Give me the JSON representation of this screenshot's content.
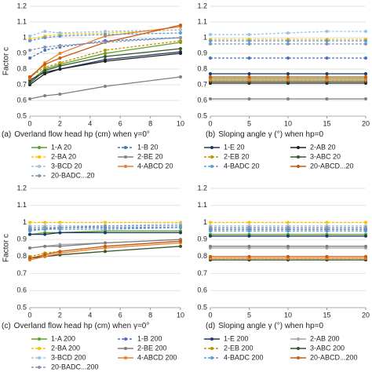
{
  "chart_data": [
    {
      "type": "line",
      "panel": "(a)",
      "x_label": "Overland flow head hp (cm) when γ=0°",
      "y_label": "Factor c",
      "x": [
        0,
        1,
        2,
        5,
        10
      ],
      "xlim": [
        0,
        10
      ],
      "xticks": [
        0,
        2,
        4,
        6,
        8,
        10
      ],
      "ylim": [
        0.5,
        1.2
      ],
      "yticks": [
        0.5,
        0.6,
        0.7,
        0.8,
        0.9,
        1,
        1.1,
        1.2
      ],
      "grid": true,
      "series": [
        {
          "name": "1-A 20",
          "color": "#5aa02c",
          "values": [
            0.72,
            0.8,
            0.83,
            0.9,
            0.97
          ]
        },
        {
          "name": "1-B 20",
          "color": "#4472c4",
          "dashed": true,
          "values": [
            0.87,
            0.92,
            0.94,
            0.98,
            1.0
          ]
        },
        {
          "name": "1-E 20",
          "color": "#1f3864",
          "values": [
            0.73,
            0.78,
            0.8,
            0.86,
            0.91
          ]
        },
        {
          "name": "2-AB 20",
          "color": "#222222",
          "values": [
            0.7,
            0.77,
            0.8,
            0.85,
            0.9
          ]
        },
        {
          "name": "2-BA 20",
          "color": "#ffc000",
          "dashed": true,
          "values": [
            0.99,
            1.01,
            1.02,
            1.03,
            1.05
          ]
        },
        {
          "name": "2-BE 20",
          "color": "#7f7f7f",
          "values": [
            0.61,
            0.63,
            0.64,
            0.69,
            0.75
          ]
        },
        {
          "name": "2-EB 20",
          "color": "#bf9000",
          "dashed": true,
          "values": [
            0.75,
            0.81,
            0.84,
            0.92,
            0.98
          ]
        },
        {
          "name": "3-ABC 20",
          "color": "#375623",
          "values": [
            0.71,
            0.79,
            0.82,
            0.88,
            0.93
          ]
        },
        {
          "name": "3-BCD 20",
          "color": "#9dc3e6",
          "dashed": true,
          "values": [
            1.01,
            1.04,
            1.03,
            1.04,
            1.05
          ]
        },
        {
          "name": "4-ABCD 20",
          "color": "#ed7d31",
          "values": [
            0.74,
            0.84,
            0.9,
            1.01,
            1.07
          ]
        },
        {
          "name": "4-BADC 20",
          "color": "#5b9bd5",
          "dashed": true,
          "values": [
            0.98,
            1.0,
            1.01,
            1.02,
            1.03
          ]
        },
        {
          "name": "20-ABCD...20",
          "color": "#c55a11",
          "values": [
            0.75,
            0.83,
            0.87,
            0.97,
            1.08
          ]
        },
        {
          "name": "20-BADC...20",
          "color": "#8497b0",
          "dashed": true,
          "values": [
            0.92,
            0.94,
            0.95,
            0.97,
            1.0
          ]
        }
      ]
    },
    {
      "type": "line",
      "panel": "(b)",
      "x_label": "Sloping angle γ (°) when hp=0",
      "x": [
        0,
        5,
        10,
        15,
        20
      ],
      "xlim": [
        0,
        20
      ],
      "xticks": [
        0,
        5,
        10,
        15,
        20
      ],
      "ylim": [
        0.5,
        1.2
      ],
      "yticks": [
        0.5,
        0.6,
        0.7,
        0.8,
        0.9,
        1,
        1.1,
        1.2
      ],
      "grid": true,
      "series": [
        {
          "color": "#5aa02c",
          "values": [
            0.74,
            0.74,
            0.74,
            0.74,
            0.74
          ]
        },
        {
          "color": "#4472c4",
          "dashed": true,
          "values": [
            0.87,
            0.87,
            0.87,
            0.87,
            0.87
          ]
        },
        {
          "color": "#1f3864",
          "values": [
            0.77,
            0.77,
            0.77,
            0.77,
            0.77
          ]
        },
        {
          "color": "#222222",
          "values": [
            0.71,
            0.71,
            0.71,
            0.71,
            0.71
          ]
        },
        {
          "color": "#ffc000",
          "dashed": true,
          "values": [
            0.99,
            0.99,
            0.99,
            0.99,
            0.99
          ]
        },
        {
          "color": "#7f7f7f",
          "values": [
            0.61,
            0.61,
            0.61,
            0.61,
            0.61
          ]
        },
        {
          "color": "#bf9000",
          "dashed": true,
          "values": [
            0.73,
            0.73,
            0.73,
            0.73,
            0.73
          ]
        },
        {
          "color": "#375623",
          "values": [
            0.72,
            0.72,
            0.72,
            0.72,
            0.72
          ]
        },
        {
          "color": "#9dc3e6",
          "dashed": true,
          "values": [
            1.02,
            1.02,
            1.03,
            1.04,
            1.04
          ]
        },
        {
          "color": "#ed7d31",
          "values": [
            0.73,
            0.73,
            0.73,
            0.73,
            0.73
          ]
        },
        {
          "color": "#5b9bd5",
          "dashed": true,
          "values": [
            0.98,
            0.98,
            0.98,
            0.98,
            0.98
          ]
        },
        {
          "color": "#c55a11",
          "values": [
            0.75,
            0.75,
            0.75,
            0.75,
            0.75
          ]
        },
        {
          "color": "#8497b0",
          "dashed": true,
          "values": [
            0.96,
            0.96,
            0.96,
            0.96,
            0.96
          ]
        }
      ]
    },
    {
      "type": "line",
      "panel": "(c)",
      "x_label": "Overland flow head hp (cm) when γ=0°",
      "y_label": "Factor c",
      "x": [
        0,
        1,
        2,
        5,
        10
      ],
      "xlim": [
        0,
        10
      ],
      "xticks": [
        0,
        2,
        4,
        6,
        8,
        10
      ],
      "ylim": [
        0.5,
        1.2
      ],
      "yticks": [
        0.5,
        0.6,
        0.7,
        0.8,
        0.9,
        1,
        1.1,
        1.2
      ],
      "grid": true,
      "series": [
        {
          "name": "1-A 200",
          "color": "#5aa02c",
          "values": [
            0.93,
            0.94,
            0.94,
            0.95,
            0.95
          ]
        },
        {
          "name": "1-B 200",
          "color": "#4472c4",
          "dashed": true,
          "values": [
            0.96,
            0.96,
            0.97,
            0.97,
            0.97
          ]
        },
        {
          "name": "1-E 200",
          "color": "#1f3864",
          "values": [
            0.93,
            0.93,
            0.94,
            0.94,
            0.94
          ]
        },
        {
          "name": "2-AB 200",
          "color": "#a5a5a5",
          "values": [
            0.85,
            0.86,
            0.87,
            0.88,
            0.9
          ]
        },
        {
          "name": "2-BA 200",
          "color": "#ffc000",
          "dashed": true,
          "values": [
            1.0,
            1.0,
            1.0,
            1.0,
            1.0
          ]
        },
        {
          "name": "2-BE 200",
          "color": "#7f7f7f",
          "values": [
            0.85,
            0.86,
            0.86,
            0.88,
            0.9
          ]
        },
        {
          "name": "2-EB 200",
          "color": "#bf9000",
          "dashed": true,
          "values": [
            0.8,
            0.82,
            0.83,
            0.86,
            0.89
          ]
        },
        {
          "name": "3-ABC 200",
          "color": "#375623",
          "values": [
            0.79,
            0.8,
            0.81,
            0.83,
            0.86
          ]
        },
        {
          "name": "3-BCD 200",
          "color": "#9dc3e6",
          "dashed": true,
          "values": [
            0.98,
            0.98,
            0.98,
            0.98,
            0.99
          ]
        },
        {
          "name": "4-ABCD 200",
          "color": "#ed7d31",
          "values": [
            0.78,
            0.8,
            0.82,
            0.85,
            0.88
          ]
        },
        {
          "name": "4-BADC 200",
          "color": "#5b9bd5",
          "dashed": true,
          "values": [
            0.95,
            0.96,
            0.96,
            0.96,
            0.97
          ]
        },
        {
          "name": "20-ABCD...200",
          "color": "#c55a11",
          "values": [
            0.79,
            0.81,
            0.83,
            0.86,
            0.89
          ]
        },
        {
          "name": "20-BADC...200",
          "color": "#8497b0",
          "dashed": true,
          "values": [
            0.97,
            0.97,
            0.97,
            0.98,
            0.98
          ]
        }
      ]
    },
    {
      "type": "line",
      "panel": "(d)",
      "x_label": "Sloping angle γ (°) when hp=0",
      "x": [
        0,
        5,
        10,
        15,
        20
      ],
      "xlim": [
        0,
        20
      ],
      "xticks": [
        0,
        5,
        10,
        15,
        20
      ],
      "ylim": [
        0.5,
        1.2
      ],
      "yticks": [
        0.5,
        0.6,
        0.7,
        0.8,
        0.9,
        1,
        1.1,
        1.2
      ],
      "grid": true,
      "series": [
        {
          "color": "#5aa02c",
          "values": [
            0.93,
            0.93,
            0.93,
            0.93,
            0.93
          ]
        },
        {
          "color": "#4472c4",
          "dashed": true,
          "values": [
            0.96,
            0.96,
            0.96,
            0.96,
            0.96
          ]
        },
        {
          "color": "#1f3864",
          "values": [
            0.92,
            0.92,
            0.92,
            0.92,
            0.92
          ]
        },
        {
          "color": "#a5a5a5",
          "values": [
            0.85,
            0.85,
            0.85,
            0.85,
            0.85
          ]
        },
        {
          "color": "#ffc000",
          "dashed": true,
          "values": [
            1.0,
            1.0,
            1.0,
            1.0,
            1.0
          ]
        },
        {
          "color": "#7f7f7f",
          "values": [
            0.86,
            0.86,
            0.86,
            0.86,
            0.86
          ]
        },
        {
          "color": "#bf9000",
          "dashed": true,
          "values": [
            0.79,
            0.79,
            0.79,
            0.79,
            0.79
          ]
        },
        {
          "color": "#375623",
          "values": [
            0.78,
            0.78,
            0.78,
            0.78,
            0.78
          ]
        },
        {
          "color": "#9dc3e6",
          "dashed": true,
          "values": [
            0.98,
            0.98,
            0.98,
            0.98,
            0.98
          ]
        },
        {
          "color": "#ed7d31",
          "values": [
            0.79,
            0.79,
            0.79,
            0.79,
            0.79
          ]
        },
        {
          "color": "#5b9bd5",
          "dashed": true,
          "values": [
            0.95,
            0.95,
            0.95,
            0.95,
            0.95
          ]
        },
        {
          "color": "#c55a11",
          "values": [
            0.8,
            0.8,
            0.8,
            0.8,
            0.8
          ]
        },
        {
          "color": "#8497b0",
          "dashed": true,
          "values": [
            0.97,
            0.97,
            0.97,
            0.97,
            0.97
          ]
        }
      ]
    }
  ]
}
